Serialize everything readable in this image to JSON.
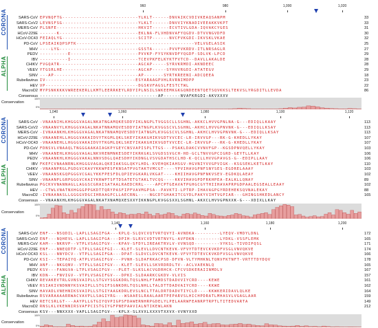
{
  "groups": {
    "corona": "CORONA",
    "alpha": "ALPHA"
  },
  "colors": {
    "corona": "#1e4fb0",
    "alpha": "#1f8a3a",
    "residue": "#d21e1e",
    "bar": "#e79e9e",
    "bar_stroke": "#b53a3a",
    "cons_bg": "#dcdcdc",
    "marker": "#1e3fae"
  },
  "consensus_labels": {
    "name": "Consensus",
    "chart": "Conservation",
    "scale_top": "100%",
    "scale_bottom": "0%"
  },
  "blocks": [
    {
      "ruler": [
        "960",
        "980",
        "1,000",
        "1,020"
      ],
      "rows": [
        {
          "name": "SARS-CoV",
          "seq": "EPVNQFTG---------------------------YLKLT------DNVAIKCVDIVKEAQSANPM",
          "num": "33"
        },
        {
          "name": "SARS-CoV2",
          "seq": "LEVNSFSG---------------------------YLKLT------DNVVIYKNADIVEEAKKVKPT",
          "num": "33"
        },
        {
          "name": "MERS-CoV",
          "seq": "PLSNFE-----------------------------HKVIT------ECVTIVLGDA-IQVAKCYGES",
          "num": "31"
        },
        {
          "name": "HCoV-229E",
          "seq": "------K----------------------------EKLNA-FLVHDNVAFYQGDV-DTVVNGVDFD",
          "num": "30"
        },
        {
          "name": "HCoV-OC43",
          "seq": "FEIAQLYG---------------------------SCITP------NVCFVKGDI-IKVSKLVKAE",
          "num": "32"
        },
        {
          "name": "PD-CoV",
          "seq": "LPSEAIKQPSPTK------------------------------------------VELVGELASIK",
          "num": "25"
        },
        {
          "name": "MHV",
          "seq": "----LYG----------------------------GSSTA------PVVFVKRDV-ITLNRSAGLR",
          "num": "27"
        },
        {
          "name": "PEDV",
          "seq": "----------E------------------------PVVKP-FYSYKNVDFYQGDF-SDLVK-LPCD",
          "num": "29"
        },
        {
          "name": "IBV",
          "seq": "----------I------------------------TCEVPKFELKYKTFVTCD--DAVLLAKALDE",
          "num": "28"
        },
        {
          "name": "CHIKV",
          "seq": "FVGQATR----------------------------AGCAP-----SYRVKRMDI-AKNDEEC",
          "num": "28"
        },
        {
          "name": "VEEV",
          "seq": "YTGSRLHE---------------------------AGCAP-----SYHVVRGDI-ATATEGV",
          "num": "29"
        },
        {
          "name": "SINV",
          "seq": "---AP------------------------------AP-------SYRTKREENI-ADCQEEA",
          "num": "18"
        },
        {
          "name": "Rubellavirus",
          "seq": "IV--------------------------------ESYARAAGPVHLRVRNIMDPP",
          "num": "23"
        },
        {
          "name": "HEV",
          "seq": "VP---------------------------------DGSKVFAGSLFESTCTWL",
          "num": "22"
        },
        {
          "name": "MacroD2",
          "seq": "MYPSNKKKKVWREEKERLLKMTLEERRKEYLRDYIPLNSILSWKEEMKGKGQNDEENTQETSQVKKSLTEKVSLYRGDITLLEVDA",
          "num": "86"
        }
      ],
      "consensus": "------------------------------------------AP------NVAFKRGDI-AKVXXXV",
      "conservation": [
        2,
        1,
        2,
        1,
        1,
        1,
        0,
        1,
        1,
        0,
        0,
        1,
        0,
        0,
        0,
        1,
        0,
        1,
        0,
        0,
        1,
        0,
        0,
        0,
        0,
        1,
        0,
        1,
        0,
        0,
        0,
        0,
        1,
        0,
        0,
        1,
        1,
        0,
        1,
        0,
        2,
        4,
        6,
        10,
        8,
        6,
        2,
        1,
        3,
        2,
        2,
        1,
        6,
        10,
        15,
        12,
        18,
        20,
        30,
        28,
        22,
        14,
        10,
        8,
        6,
        5,
        4,
        8,
        6,
        4
      ]
    },
    {
      "ruler": [
        "1,040",
        "1,060",
        "1,080",
        "1,100",
        "1,120"
      ],
      "rows": [
        {
          "name": "SARS-CoV",
          "seq": "-VNAANIHLKHGGGVAGALNKATNGAMQKESDDYIKLNGPLTVGGSCLLSGHNL-AKKCLHVVGPNLNA-G---EDIQLLKAAY",
          "num": "113"
        },
        {
          "name": "SARS-CoV2",
          "seq": "-VNAANVYLKHGGGVAGALNKATNNAMQVESDDYIATNGPLKVGGSCVLSGHNL-AKHCLHVVGPNVNK-G---EDIQLLKSAY",
          "num": "113"
        },
        {
          "name": "MERS-CoV",
          "seq": "-IVNAANKHLKHGGGVAGALNKATNNAMQVESDDYIATNGPLKVGGSCVLSGHNL-AKHCLHVVGPNVNK-G---EDIQLLKSAY",
          "num": "113"
        },
        {
          "name": "HCoV-229E",
          "seq": "-VNAANEHLLHGGGVAKAIDVYTKGMLQKLSKEYIKAKGHIKVGDTVVCEC-LR-IRVVGP---RK-G-KHEDLLYKAY",
          "num": "107"
        },
        {
          "name": "HCoV-OC43",
          "seq": "-VNAANEHLLHGGGVAKAIDVYTKGMLQKLSKEYIKAKGHIKVGDTVVCEC-LR-IRVVGP---RK-G-KHEDLLYKAY",
          "num": "107"
        },
        {
          "name": "PD-CoV",
          "seq": "FDNSVLVNAAQLTNGGGAAKAIAGKPYGEYCNSVAPISPLTTGS---PSAKLDAKCVVNVFGP--KGSDPNVQELLYKAY",
          "num": "103"
        },
        {
          "name": "MHV",
          "seq": "-VNAANEHLKHGGGVAGALNKVRENMNKESDEYIKRKGKLSVGDSSVGCH-HD-GCLTNVVGPCIGRD-GEYTLLKAY",
          "num": "106"
        },
        {
          "name": "PEDV",
          "seq": "-VNAANKHLKHGGGVAKALNNVSDGLQAESDHYIKDNGLVSVGDATHSCLHD-K-QCLLHVVGPAVGS-G--EDIPLLAAY",
          "num": "106"
        },
        {
          "name": "IBV",
          "seq": "FKEFCVNAANRNLKHGGGVAGALQKEIAKSGLQKYLHDL-KVEHQKIAHSGV-HGVNIYVVGPVIGK--KSGSEKLKETLKAY",
          "num": "110"
        },
        {
          "name": "CHIKV",
          "seq": "-VNAANPRGLPGDGVCKAVYKKWPESFKNSATPVGTAKTVMCGT----YPVIHAVGPNFSNYSES-EGDRELAAAY",
          "num": "103"
        },
        {
          "name": "VEEV",
          "seq": "-VNAANSKGQPGGGVCGALYKKFPESFDLQPIEVGKARLVKGAT----KHIIHAVGPNFNKVSEV-EGDKQLAEAY",
          "num": "102"
        },
        {
          "name": "SINV",
          "seq": "-VNAANPLGRPGGGVCKAIYKRWPTSFTDSATETGTAKLTVCQG----KKVIHAVGPDFRKHPEA-EALKLLQNAY",
          "num": "89"
        },
        {
          "name": "Rubellavirus",
          "seq": "PGCKVVNANNAGLLAGGSCGRAISATAALRAEDCRRL----APCPTGEAVATPGHGCGYTHIIHAVAPRPGDPAALEGSEALLEAAY",
          "num": "102"
        },
        {
          "name": "HEV",
          "seq": "--CTWLVNATNXHGGGPPGKDTTQRYPASFIPFVAVMGPSA--PAVKTI-LPTRP-IHAVAGPGYRDEHEKSQVNALEKAY",
          "num": "88"
        },
        {
          "name": "MacroD2",
          "seq": "-IVNAANASLLGGGGVDGCIHRAAGPCLLAECRNL----NGCDTGHAKITCGYDLPAKYVIHTVGPIAR---GHINGSHKEDLANCY",
          "num": "165"
        }
      ],
      "consensus": "--VNAANXHLKHGGGVAGALNKATXNAMQXESXXYIKKNGPLKVGGSXXLSGHNL-AKXCLHVVGPNXXK-G---XDIXLLKAY",
      "conservation": [
        5,
        8,
        30,
        70,
        88,
        85,
        40,
        30,
        55,
        40,
        65,
        80,
        95,
        95,
        92,
        55,
        80,
        60,
        62,
        45,
        30,
        40,
        35,
        25,
        30,
        28,
        35,
        30,
        45,
        30,
        20,
        35,
        25,
        30,
        40,
        35,
        20,
        15,
        30,
        35,
        28,
        38,
        30,
        22,
        18,
        35,
        28,
        20,
        18,
        15,
        22,
        25,
        35,
        30,
        20,
        18,
        10,
        25,
        30,
        35,
        40,
        28,
        60,
        75,
        85,
        95,
        90,
        80,
        25,
        28,
        18,
        10,
        15,
        20,
        12,
        15,
        30,
        40,
        25,
        60,
        55,
        40,
        30,
        55,
        35,
        45
      ]
    },
    {
      "ruler": [
        "1,140",
        "1,160",
        "1,180",
        "1,200"
      ],
      "rows": [
        {
          "name": "SARS-CoV",
          "seq": "ENF---NSQDIL-LAPLLSAGIFGA---KPLQ-SLQVCVQTVRTQVYI-AVNDKA---------LYEQV-VMDYLDNL",
          "num": "172"
        },
        {
          "name": "SARS-CoV2",
          "seq": "ENF---NQHEVL-LAPLLSAGIFGA---DPIH-SLRVCVDTVRTNVYL-AVFDKN---------LYDKL-VSSFLEMK",
          "num": "165"
        },
        {
          "name": "MERS-CoV",
          "seq": "KAM---NKRVP--VTPLVSAGIFGV---KPAV-SFDYLIREAKTRVLV-VVNSQD---------VYKSL-TIVDIPQSL",
          "num": "171"
        },
        {
          "name": "HCoV-229E",
          "seq": "ENF---NNEQDTP-LTPLLSAGIFGI---KLET-SLEVLLDVCNTKEVK-VFVYTDTEVCKVKDFVSGLVNVQKVE",
          "num": "174"
        },
        {
          "name": "HCoV-OC43",
          "seq": "KSL---NNYDCV--VTPLLSAGIFGA---DPAT-SLDVCLDVCNTKEVK-VFVYTDTEVCKVKDFVSGLVNVQKVE",
          "num": "166"
        },
        {
          "name": "PD-CoV",
          "seq": "KSI---TEPAIYQ-ATPLVSAGIFGV---PVNH-SLDAFRKACPSD-DFVN-VLTYMHKNLTQNVFKTNFT-VRTTTDYDQV",
          "num": "178"
        },
        {
          "name": "MHV",
          "seq": "ANF---NKGQNV--VTPLLSAGIFGV---KLET-SLEVLLSKVRDRDLTV--ACLVAEKNLQ",
          "num": "165"
        },
        {
          "name": "PEDV",
          "seq": "KSV---FANGVA-LTPLVSAGIFGV---PLET-SLKSLACVGDRHCK-CFCVSDKERAIINMDLV",
          "num": "167"
        },
        {
          "name": "IBV",
          "seq": "KDN---FNVIGV--VTPLVSAGIFGV---DPKI-SLDAARKCGKDV-VLVIS",
          "num": "157"
        },
        {
          "name": "CHIKV",
          "seq": "REVAKEVTRLGVNSVAIPLLSTGVYSGGKDRLTQSLNHLFTAMDSTDADVVIYCRD----KEWE",
          "num": "161"
        },
        {
          "name": "VEEV",
          "seq": "RSIAKIVNDNNYKSVAIPLLSTGIFSGNKDRLTQSLNHLLTALDTTDADVAIYCRD----KKWE",
          "num": "162"
        },
        {
          "name": "SINV",
          "seq": "HAVADLVNEHNIKSVAIPLLSTGIYAAGKDRLEVSLNCLTTALDRTDADVTIYCLD----KKWKERIDAVLQLKE",
          "num": "164"
        },
        {
          "name": "Rubellavirus",
          "seq": "RSVARAAAARRWACVAVPLLSAGIYRG---WSAAESLRAALAARTPEPARVSLHICHPDRATLMHASVLVGAGLAAR",
          "num": "159"
        },
        {
          "name": "HEV",
          "seq": "RETCSRLGT---AAYPLLGTGIYQVPIGPSFDAWERNHRPGDELYLPELAARWFEANRPTRPTLTITEDVARTA",
          "num": "149"
        },
        {
          "name": "MacroD2",
          "seq": "RNSLKLVKENNIRSVAFPCISTGIYGFPNEPAAVIALNTIKEWLAKN",
          "num": "212"
        }
      ],
      "consensus": "KSV---NNXXXX-VAPLLSAGIFGV---KPLX-SLXVXLXXXVTXXVX-VVNYXXD",
      "conservation": [
        10,
        20,
        15,
        5,
        5,
        4,
        25,
        15,
        8,
        10,
        6,
        8,
        20,
        40,
        65,
        45,
        92,
        75,
        80,
        95,
        92,
        88,
        70,
        20,
        15,
        10,
        30,
        28,
        20,
        35,
        15,
        55,
        30,
        35,
        42,
        25,
        30,
        38,
        22,
        28,
        30,
        20,
        18,
        22,
        25,
        30,
        22,
        25,
        18,
        15,
        12,
        28,
        20,
        18,
        12,
        10,
        8,
        10,
        15,
        8,
        12,
        6,
        8,
        5,
        10,
        6,
        4,
        5,
        3,
        2,
        4,
        3,
        2
      ]
    }
  ]
}
